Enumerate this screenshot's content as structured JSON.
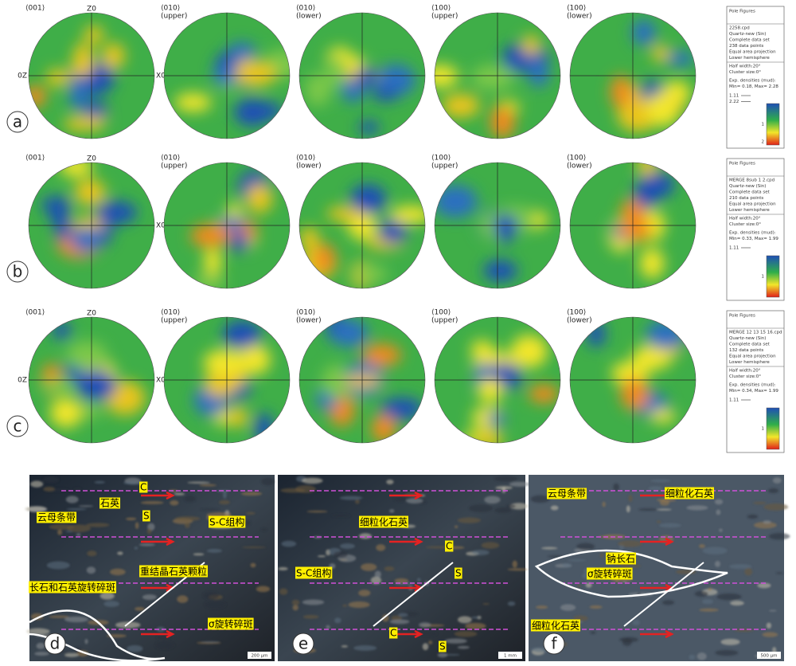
{
  "pole_rows": [
    {
      "label": "a",
      "plots": [
        {
          "title": "⟨001⟩",
          "top": "Z0",
          "right": "X0",
          "left": "0Z"
        },
        {
          "title": "⟨010⟩",
          "sub": "(upper)"
        },
        {
          "title": "⟨010⟩",
          "sub": "(lower)"
        },
        {
          "title": "⟨100⟩",
          "sub": "(upper)"
        },
        {
          "title": "⟨100⟩",
          "sub": "(lower)"
        }
      ],
      "legend": {
        "title": "Pole Figures",
        "info": [
          "2258.cpd",
          "Quartz-new (Sin)",
          "Complete data set",
          "238 data points",
          "Equal area projection",
          "Lower hemisphere"
        ],
        "params": [
          "Half width:20°",
          "Cluster size:0°"
        ],
        "densities": [
          "Exp. densities (mud):",
          "Min= 0.18, Max= 2.28"
        ],
        "contours": [
          "1.11",
          "2.22"
        ],
        "scale": [
          "1",
          "2"
        ]
      }
    },
    {
      "label": "b",
      "plots": [
        {
          "title": "⟨001⟩",
          "top": "Z0",
          "right": "X0"
        },
        {
          "title": "⟨010⟩",
          "sub": "(upper)"
        },
        {
          "title": "⟨010⟩",
          "sub": "(lower)"
        },
        {
          "title": "⟨100⟩",
          "sub": "(upper)"
        },
        {
          "title": "⟨100⟩",
          "sub": "(lower)"
        }
      ],
      "legend": {
        "title": "Pole Figures",
        "info": [
          "MERGE 8sub 1 2.cpd",
          "Quartz-new (Sin)",
          "Complete data set",
          "210 data points",
          "Equal area projection",
          "Lower hemisphere"
        ],
        "params": [
          "Half width:20°",
          "Cluster size:0°"
        ],
        "densities": [
          "Exp. densities (mud):",
          "Min= 0.33, Max= 1.99"
        ],
        "contours": [
          "1.11"
        ],
        "scale": [
          "1"
        ]
      }
    },
    {
      "label": "c",
      "plots": [
        {
          "title": "⟨001⟩",
          "top": "Z0",
          "right": "X0",
          "left": "0Z"
        },
        {
          "title": "⟨010⟩",
          "sub": "(upper)"
        },
        {
          "title": "⟨010⟩",
          "sub": "(lower)"
        },
        {
          "title": "⟨100⟩",
          "sub": "(upper)"
        },
        {
          "title": "⟨100⟩",
          "sub": "(lower)"
        }
      ],
      "legend": {
        "title": "Pole Figures",
        "info": [
          "MERGE 12 13 15 16.cpd",
          "Quartz-new (Sin)",
          "Complete data set",
          "132 data points",
          "Equal area projection",
          "Lower hemisphere"
        ],
        "params": [
          "Half width:20°",
          "Cluster size:0°"
        ],
        "densities": [
          "Exp. densities (mud):",
          "Min= 0.34, Max= 1.99"
        ],
        "contours": [
          "1.11"
        ],
        "scale": [
          "1"
        ]
      }
    }
  ],
  "micrographs": [
    {
      "label": "d",
      "annotations": [
        "C",
        "石英",
        "S",
        "云母条带",
        "S-C组构",
        "重结晶石英颗粒",
        "长石和石英旋转碎斑",
        "σ旋转碎斑"
      ],
      "scale_bar": "200 μm"
    },
    {
      "label": "e",
      "annotations": [
        "细粒化石英",
        "C",
        "S-C组构",
        "S",
        "C",
        "S"
      ],
      "scale_bar": "1 mm"
    },
    {
      "label": "f",
      "annotations": [
        "云母条带",
        "细粒化石英",
        "钠长石",
        "σ旋转碎斑",
        "细粒化石英"
      ],
      "scale_bar": "500 μm"
    }
  ]
}
